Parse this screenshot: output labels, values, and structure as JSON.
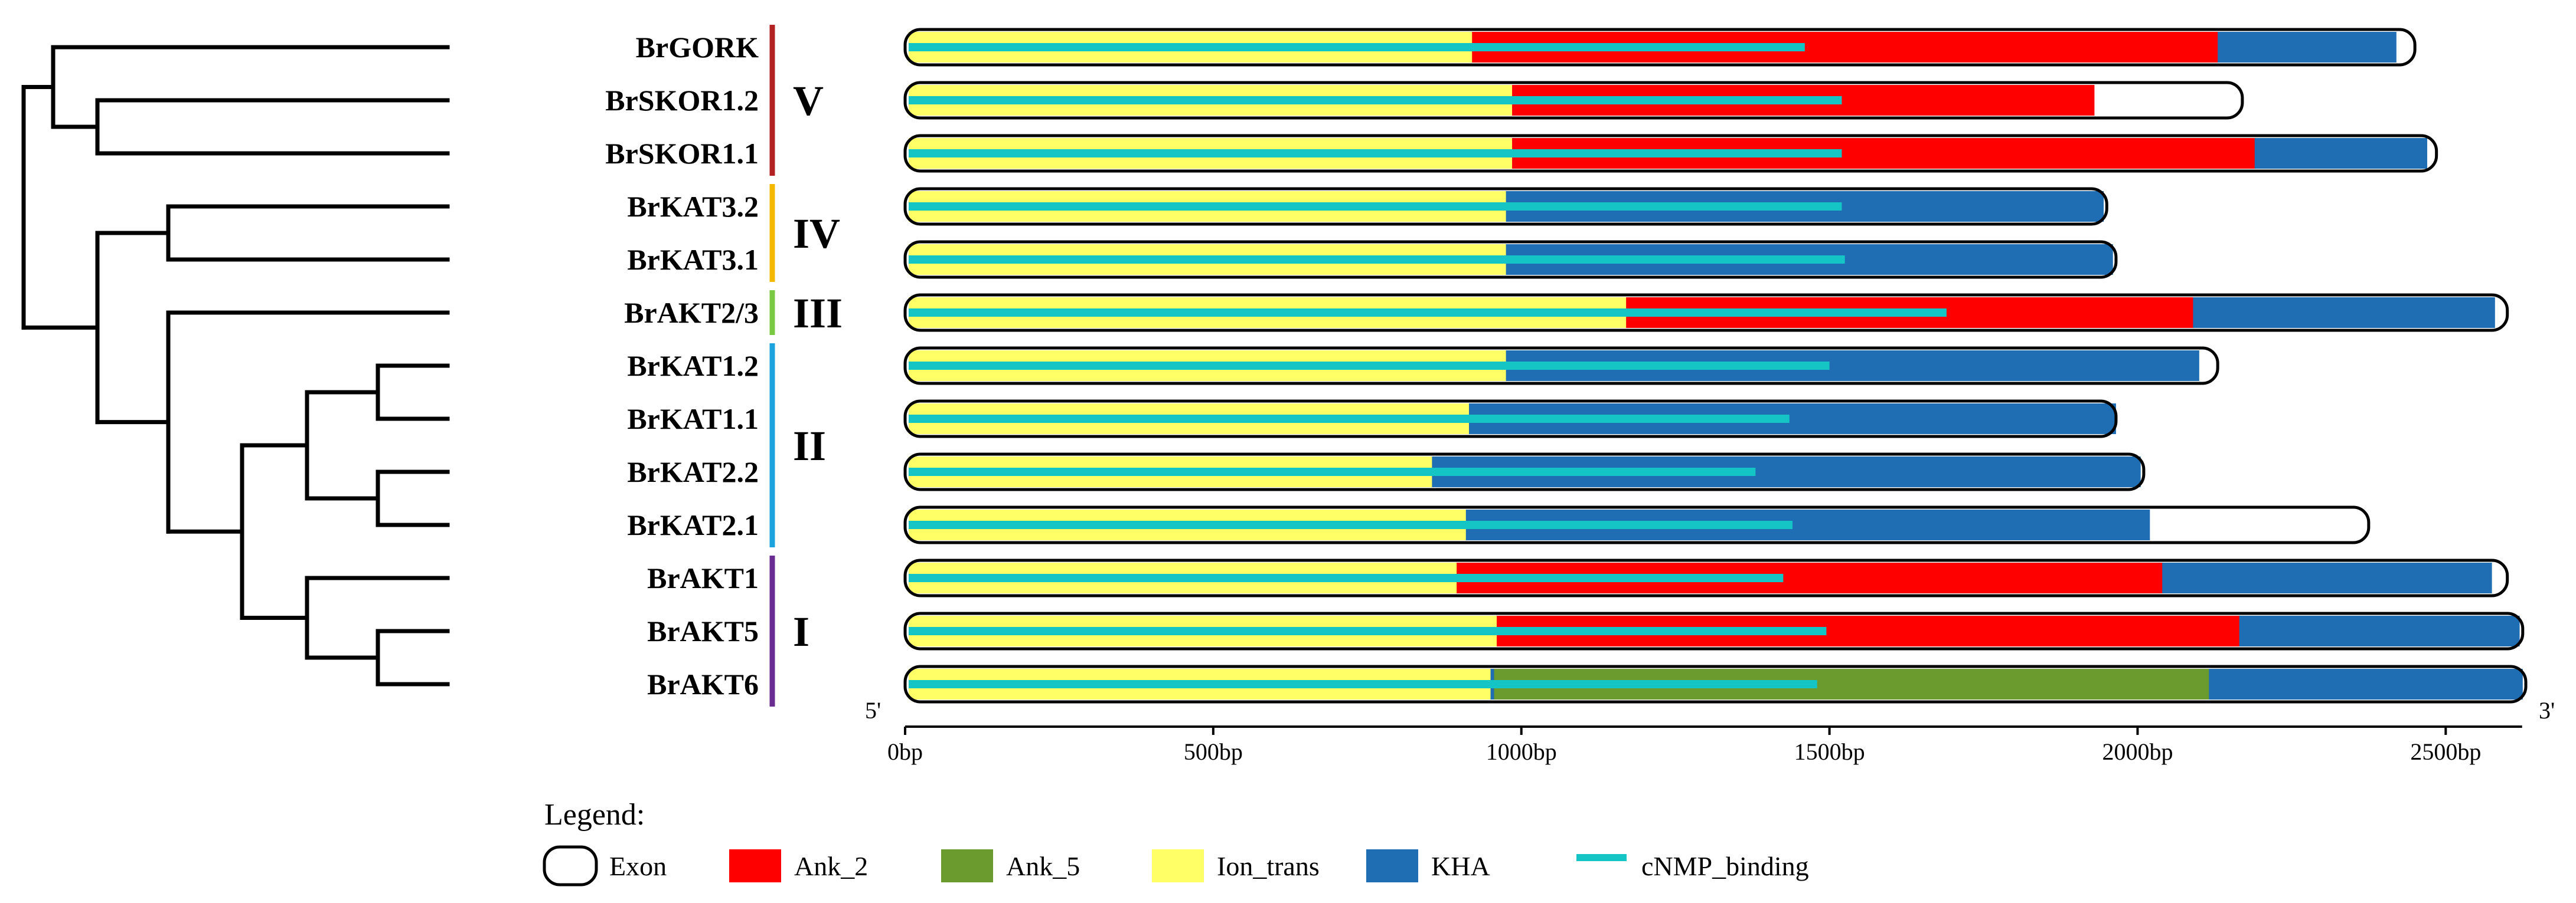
{
  "colors": {
    "Ank_2": "#ff0000",
    "Ank_5": "#6b9a2e",
    "Ion_trans": "#ffff66",
    "KHA": "#1f6db2",
    "cNMP_binding": "#15c4c4",
    "tree": "#000000",
    "groups": {
      "V": "#b22222",
      "IV": "#f5b800",
      "III": "#7ac943",
      "II": "#1aa3dd",
      "I": "#6a2c91"
    }
  },
  "genes": [
    {
      "name": "BrGORK",
      "length": 2450,
      "domains": [
        {
          "type": "KHA",
          "start": 0,
          "end": 2420
        },
        {
          "type": "Ank_2",
          "start": 0,
          "end": 2130
        },
        {
          "type": "Ion_trans",
          "start": 0,
          "end": 920
        },
        {
          "type": "cNMP_binding",
          "start": 0,
          "end": 1460
        }
      ]
    },
    {
      "name": "BrSKOR1.2",
      "length": 2170,
      "domains": [
        {
          "type": "Ank_2",
          "start": 0,
          "end": 1930
        },
        {
          "type": "Ion_trans",
          "start": 0,
          "end": 985
        },
        {
          "type": "cNMP_binding",
          "start": 0,
          "end": 1520
        }
      ]
    },
    {
      "name": "BrSKOR1.1",
      "length": 2485,
      "domains": [
        {
          "type": "KHA",
          "start": 0,
          "end": 2470
        },
        {
          "type": "Ank_2",
          "start": 0,
          "end": 2190
        },
        {
          "type": "Ion_trans",
          "start": 0,
          "end": 985
        },
        {
          "type": "cNMP_binding",
          "start": 0,
          "end": 1520
        }
      ]
    },
    {
      "name": "BrKAT3.2",
      "length": 1950,
      "domains": [
        {
          "type": "KHA",
          "start": 0,
          "end": 1945
        },
        {
          "type": "Ion_trans",
          "start": 0,
          "end": 975
        },
        {
          "type": "cNMP_binding",
          "start": 0,
          "end": 1520
        }
      ]
    },
    {
      "name": "BrKAT3.1",
      "length": 1965,
      "domains": [
        {
          "type": "KHA",
          "start": 0,
          "end": 1960
        },
        {
          "type": "Ion_trans",
          "start": 0,
          "end": 975
        },
        {
          "type": "cNMP_binding",
          "start": 0,
          "end": 1525
        }
      ]
    },
    {
      "name": "BrAKT2/3",
      "length": 2600,
      "domains": [
        {
          "type": "KHA",
          "start": 0,
          "end": 2580
        },
        {
          "type": "Ank_2",
          "start": 0,
          "end": 2090
        },
        {
          "type": "Ion_trans",
          "start": 0,
          "end": 1170
        },
        {
          "type": "cNMP_binding",
          "start": 0,
          "end": 1690
        }
      ]
    },
    {
      "name": "BrKAT1.2",
      "length": 2130,
      "domains": [
        {
          "type": "KHA",
          "start": 0,
          "end": 2100
        },
        {
          "type": "Ion_trans",
          "start": 0,
          "end": 975
        },
        {
          "type": "cNMP_binding",
          "start": 0,
          "end": 1500
        }
      ]
    },
    {
      "name": "BrKAT1.1",
      "length": 1965,
      "domains": [
        {
          "type": "KHA",
          "start": 0,
          "end": 1965
        },
        {
          "type": "Ion_trans",
          "start": 0,
          "end": 915
        },
        {
          "type": "cNMP_binding",
          "start": 0,
          "end": 1435
        }
      ]
    },
    {
      "name": "BrKAT2.2",
      "length": 2010,
      "domains": [
        {
          "type": "KHA",
          "start": 0,
          "end": 2005
        },
        {
          "type": "Ion_trans",
          "start": 0,
          "end": 855
        },
        {
          "type": "cNMP_binding",
          "start": 0,
          "end": 1380
        }
      ]
    },
    {
      "name": "BrKAT2.1",
      "length": 2375,
      "domains": [
        {
          "type": "KHA",
          "start": 0,
          "end": 2020
        },
        {
          "type": "Ion_trans",
          "start": 0,
          "end": 910
        },
        {
          "type": "cNMP_binding",
          "start": 0,
          "end": 1440
        }
      ]
    },
    {
      "name": "BrAKT1",
      "length": 2600,
      "domains": [
        {
          "type": "KHA",
          "start": 0,
          "end": 2575
        },
        {
          "type": "Ank_2",
          "start": 0,
          "end": 2040
        },
        {
          "type": "Ion_trans",
          "start": 0,
          "end": 895
        },
        {
          "type": "cNMP_binding",
          "start": 0,
          "end": 1425
        }
      ]
    },
    {
      "name": "BrAKT5",
      "length": 2625,
      "domains": [
        {
          "type": "KHA",
          "start": 0,
          "end": 2620
        },
        {
          "type": "Ank_2",
          "start": 0,
          "end": 2165
        },
        {
          "type": "Ion_trans",
          "start": 0,
          "end": 960
        },
        {
          "type": "cNMP_binding",
          "start": 0,
          "end": 1495
        }
      ]
    },
    {
      "name": "BrAKT6",
      "length": 2630,
      "domains": [
        {
          "type": "KHA",
          "start": 0,
          "end": 2625
        },
        {
          "type": "Ank_5",
          "start": 950,
          "end": 2110
        },
        {
          "type": "Ion_trans",
          "start": 0,
          "end": 950
        },
        {
          "type": "cNMP_binding",
          "start": 0,
          "end": 1480
        }
      ]
    }
  ],
  "groups": [
    {
      "label": "V",
      "first": 0,
      "last": 2,
      "color_key": "V"
    },
    {
      "label": "IV",
      "first": 3,
      "last": 4,
      "color_key": "IV"
    },
    {
      "label": "III",
      "first": 5,
      "last": 5,
      "color_key": "III"
    },
    {
      "label": "II",
      "first": 6,
      "last": 9,
      "color_key": "II"
    },
    {
      "label": "I",
      "first": 10,
      "last": 12,
      "color_key": "I"
    }
  ],
  "tree": {
    "x": [
      0,
      1,
      2,
      3,
      4,
      5,
      6
    ],
    "nodes": [
      {
        "id": "n_skor",
        "depth": 1,
        "children": [
          "leaf:1",
          "leaf:2"
        ]
      },
      {
        "id": "n_upper",
        "depth": 0.4,
        "children": [
          "leaf:0",
          "n_skor"
        ]
      },
      {
        "id": "n_kat3",
        "depth": 2,
        "children": [
          "leaf:3",
          "leaf:4"
        ]
      },
      {
        "id": "n_kat1",
        "depth": 5,
        "children": [
          "leaf:6",
          "leaf:7"
        ]
      },
      {
        "id": "n_kat2",
        "depth": 5,
        "children": [
          "leaf:8",
          "leaf:9"
        ]
      },
      {
        "id": "n_kat12",
        "depth": 4,
        "children": [
          "n_kat1",
          "n_kat2"
        ]
      },
      {
        "id": "n_akt56",
        "depth": 5,
        "children": [
          "leaf:11",
          "leaf:12"
        ]
      },
      {
        "id": "n_akt156",
        "depth": 4,
        "children": [
          "leaf:10",
          "n_akt56"
        ]
      },
      {
        "id": "n_katakt",
        "depth": 3,
        "children": [
          "n_kat12",
          "n_akt156"
        ]
      },
      {
        "id": "n_akt23",
        "depth": 2,
        "children": [
          "leaf:5",
          "n_katakt"
        ]
      },
      {
        "id": "n_mid",
        "depth": 1,
        "children": [
          "n_kat3",
          "n_akt23"
        ]
      },
      {
        "id": "root",
        "depth": 0,
        "children": [
          "n_upper",
          "n_mid"
        ]
      }
    ]
  },
  "axis": {
    "max_bp": 2600,
    "ticks": [
      {
        "value": 0,
        "label": "0bp"
      },
      {
        "value": 500,
        "label": "500bp"
      },
      {
        "value": 1000,
        "label": "1000bp"
      },
      {
        "value": 1500,
        "label": "1500bp"
      },
      {
        "value": 2000,
        "label": "2000bp"
      },
      {
        "value": 2500,
        "label": "2500bp"
      }
    ],
    "five_prime": "5'",
    "three_prime": "3'"
  },
  "legend": {
    "title": "Legend:",
    "items": [
      {
        "label": "Exon",
        "kind": "exon"
      },
      {
        "label": "Ank_2",
        "kind": "Ank_2"
      },
      {
        "label": "Ank_5",
        "kind": "Ank_5"
      },
      {
        "label": "Ion_trans",
        "kind": "Ion_trans"
      },
      {
        "label": "KHA",
        "kind": "KHA"
      },
      {
        "label": "cNMP_binding",
        "kind": "cNMP_binding"
      }
    ]
  }
}
